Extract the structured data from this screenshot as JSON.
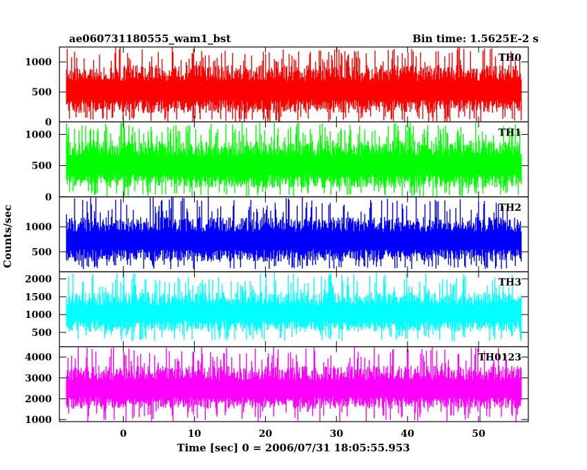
{
  "chart_data": {
    "type": "line",
    "title_left": "ae060731180555_wam1_bst",
    "title_right": "Bin time: 1.5625E-2 s",
    "xlabel": "Time [sec] 0 = 2006/07/31 18:05:55.953",
    "ylabel": "Counts/sec",
    "xlim": [
      -9,
      57
    ],
    "x_data_range": [
      -8,
      56
    ],
    "x_ticks": [
      0,
      10,
      20,
      30,
      40,
      50
    ],
    "x_tick_labels": [
      "0",
      "10",
      "20",
      "30",
      "40",
      "50"
    ],
    "panels": [
      {
        "name": "TH0",
        "color": "#ff0000",
        "ylim": [
          0,
          1250
        ],
        "y_ticks": [
          0,
          500,
          1000
        ],
        "y_tick_labels": [
          "0",
          "500",
          "1000"
        ],
        "typical_range": [
          100,
          1000
        ],
        "spike_range": [
          0,
          1250
        ]
      },
      {
        "name": "TH1",
        "color": "#00ff00",
        "ylim": [
          0,
          1200
        ],
        "y_ticks": [
          0,
          500,
          1000
        ],
        "y_tick_labels": [
          "0",
          "500",
          "1000"
        ],
        "typical_range": [
          100,
          950
        ],
        "spike_range": [
          0,
          1200
        ]
      },
      {
        "name": "TH2",
        "color": "#0000ff",
        "ylim": [
          100,
          1600
        ],
        "y_ticks": [
          500,
          1000
        ],
        "y_tick_labels": [
          "500",
          "1000"
        ],
        "typical_range": [
          250,
          1250
        ],
        "spike_range": [
          150,
          1600
        ]
      },
      {
        "name": "TH3",
        "color": "#00ffff",
        "ylim": [
          100,
          2200
        ],
        "y_ticks": [
          500,
          1000,
          1500,
          2000
        ],
        "y_tick_labels": [
          "500",
          "1000",
          "1500",
          "2000"
        ],
        "typical_range": [
          450,
          1700
        ],
        "spike_range": [
          250,
          2200
        ]
      },
      {
        "name": "TH0123",
        "color": "#ff00ff",
        "ylim": [
          900,
          4500
        ],
        "y_ticks": [
          1000,
          2000,
          3000,
          4000
        ],
        "y_tick_labels": [
          "1000",
          "2000",
          "3000",
          "4000"
        ],
        "typical_range": [
          1400,
          3700
        ],
        "spike_range": [
          900,
          4500
        ]
      }
    ]
  }
}
